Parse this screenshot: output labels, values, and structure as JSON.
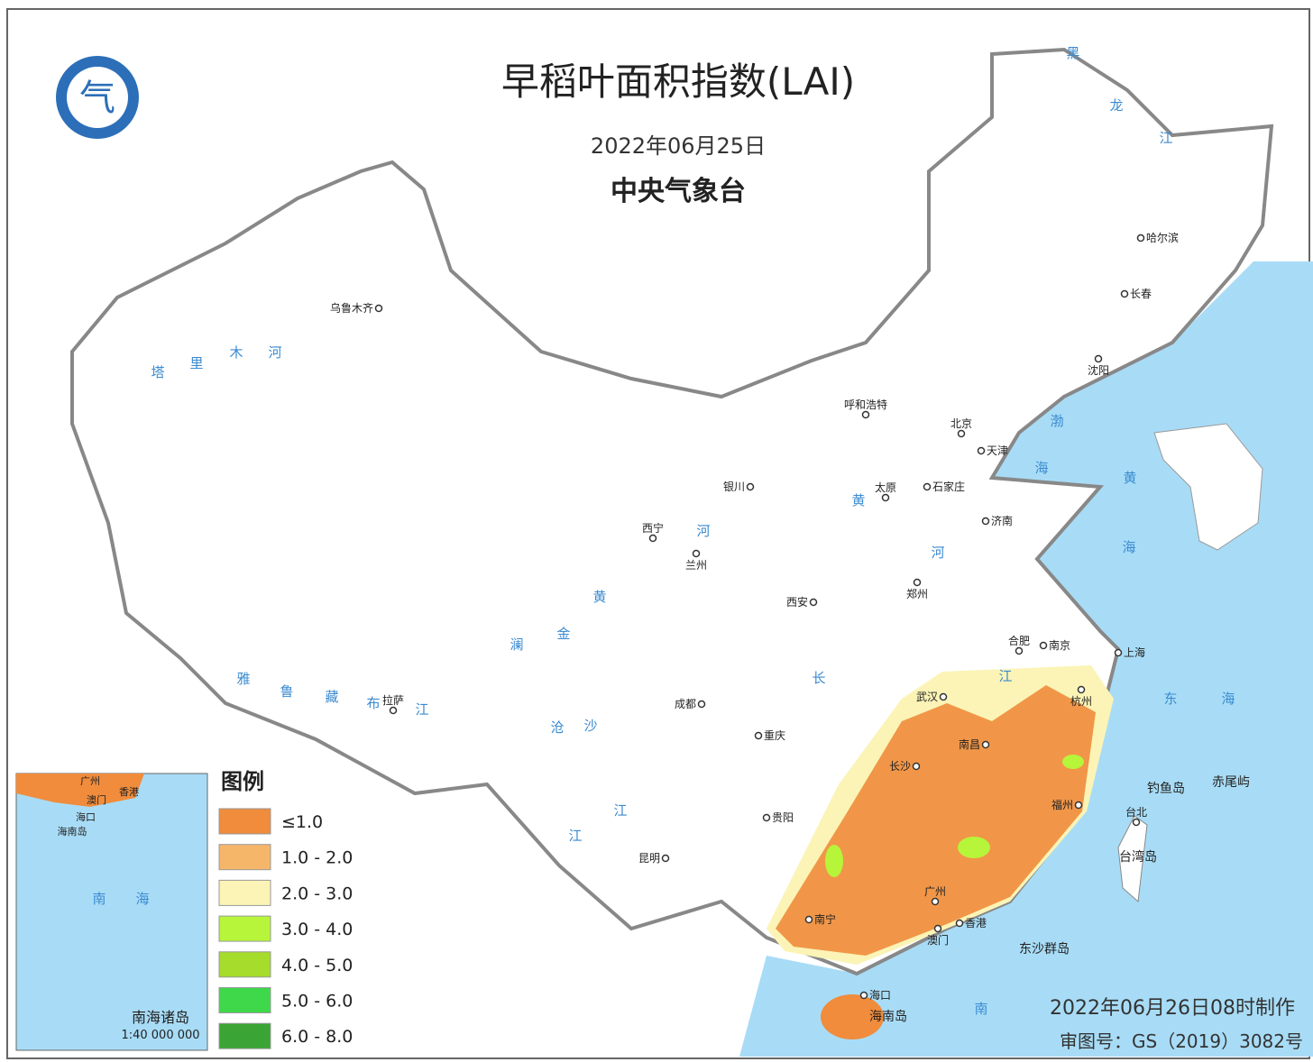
{
  "header": {
    "title": "早稻叶面积指数(LAI)",
    "date": "2022年06月25日",
    "agency": "中央气象台"
  },
  "legend": {
    "title": "图例",
    "items": [
      {
        "label": "≤1.0",
        "color": "#f08c3c"
      },
      {
        "label": "1.0 - 2.0",
        "color": "#f6b66a"
      },
      {
        "label": "2.0 - 3.0",
        "color": "#fbf4b6"
      },
      {
        "label": "3.0 - 4.0",
        "color": "#b6f53a"
      },
      {
        "label": "4.0 - 5.0",
        "color": "#a6dc2c"
      },
      {
        "label": "5.0 - 6.0",
        "color": "#3ed84a"
      },
      {
        "label": "6.0 - 8.0",
        "color": "#3aa534"
      }
    ]
  },
  "cities": [
    "乌鲁木齐",
    "呼和浩特",
    "北京",
    "天津",
    "哈尔滨",
    "长春",
    "沈阳",
    "银川",
    "太原",
    "石家庄",
    "济南",
    "西宁",
    "兰州",
    "郑州",
    "西安",
    "合肥",
    "南京",
    "上海",
    "拉萨",
    "成都",
    "武汉",
    "杭州",
    "重庆",
    "南昌",
    "长沙",
    "福州",
    "贵阳",
    "昆明",
    "广州",
    "南宁",
    "香港",
    "澳门",
    "海口",
    "台北"
  ],
  "places": [
    "海南岛",
    "台湾岛",
    "东沙群岛",
    "钓鱼岛",
    "赤尾屿"
  ],
  "water_labels": [
    "塔",
    "里",
    "木",
    "河",
    "黑",
    "龙",
    "江",
    "雅",
    "鲁",
    "藏",
    "布",
    "江",
    "澜",
    "沧",
    "江",
    "金",
    "沙",
    "江",
    "黄",
    "河",
    "黄",
    "河",
    "长",
    "江",
    "渤",
    "海",
    "黄",
    "海",
    "东",
    "海",
    "南"
  ],
  "inset": {
    "labels": [
      "广州",
      "香港",
      "澳门",
      "海口",
      "海南岛",
      "南",
      "海",
      "南海诸岛",
      "1:40 000 000"
    ]
  },
  "footer": {
    "made": "2022年06月26日08时制作",
    "review": "审图号：GS（2019）3082号"
  }
}
